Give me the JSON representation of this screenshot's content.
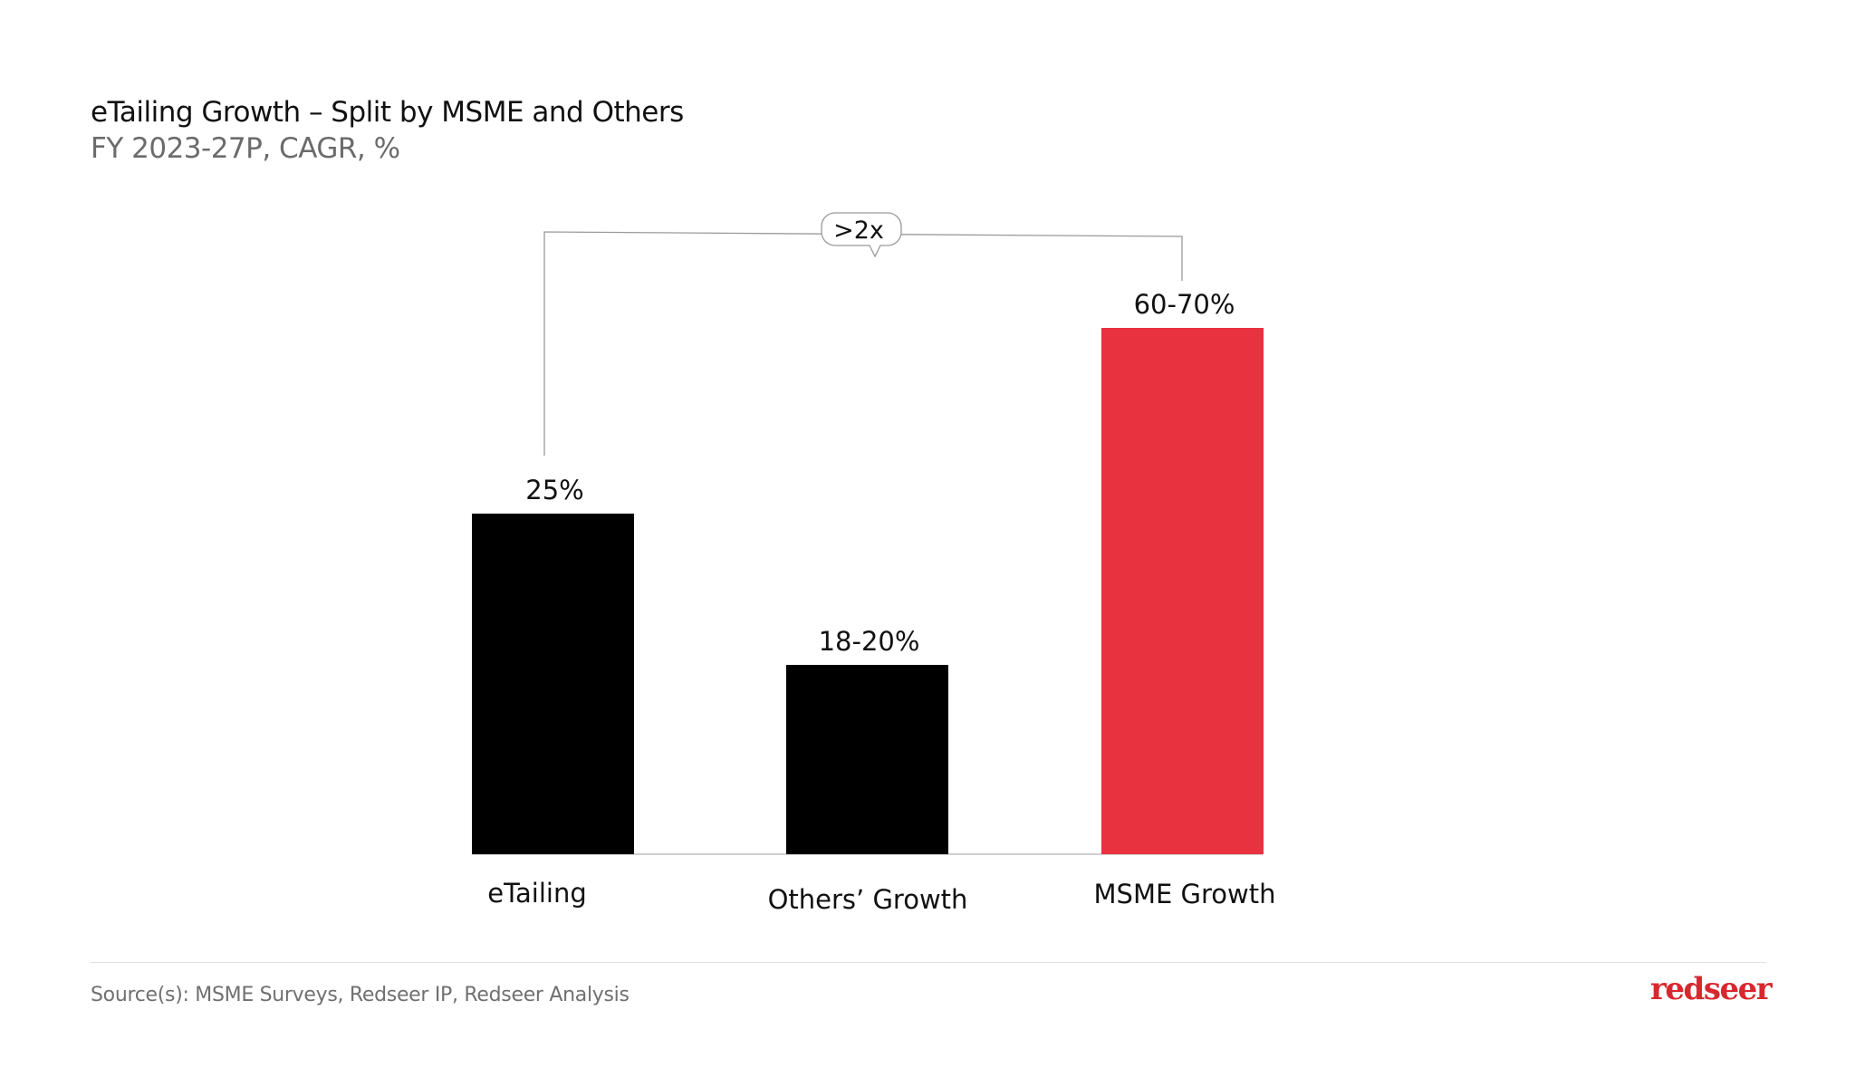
{
  "header": {
    "title": "eTailing Growth – Split by MSME and Others",
    "subtitle": "FY 2023-27P, CAGR, %"
  },
  "chart_data": {
    "type": "bar",
    "title": "eTailing Growth – Split by MSME and Others",
    "subtitle": "FY 2023-27P, CAGR, %",
    "categories": [
      "eTailing",
      "Others’ Growth",
      "MSME Growth"
    ],
    "values": [
      [
        25,
        25
      ],
      [
        18,
        20
      ],
      [
        60,
        70
      ]
    ],
    "data_labels": [
      "25%",
      "18-20%",
      "60-70%"
    ],
    "colors": [
      "#000000",
      "#000000",
      "#e8323f"
    ],
    "grid": false,
    "legend": "none",
    "annotation": {
      "label": ">2x",
      "from": "eTailing",
      "to": "MSME Growth"
    }
  },
  "footer": {
    "source": "Source(s): MSME Surveys, Redseer IP, Redseer Analysis",
    "logo": "redseer"
  }
}
